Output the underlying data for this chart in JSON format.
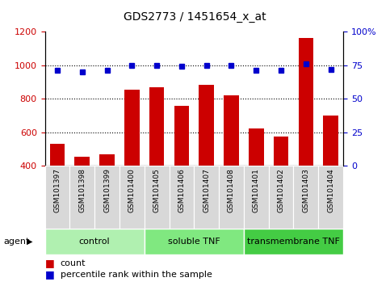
{
  "title": "GDS2773 / 1451654_x_at",
  "samples": [
    "GSM101397",
    "GSM101398",
    "GSM101399",
    "GSM101400",
    "GSM101405",
    "GSM101406",
    "GSM101407",
    "GSM101408",
    "GSM101401",
    "GSM101402",
    "GSM101403",
    "GSM101404"
  ],
  "counts": [
    530,
    455,
    470,
    855,
    870,
    755,
    880,
    820,
    625,
    575,
    1160,
    700
  ],
  "percentiles": [
    71,
    70,
    71,
    75,
    75,
    74,
    75,
    75,
    71,
    71,
    76,
    72
  ],
  "groups": [
    {
      "name": "control",
      "start": 0,
      "end": 4,
      "color": "#b0f0b0"
    },
    {
      "name": "soluble TNF",
      "start": 4,
      "end": 8,
      "color": "#80e880"
    },
    {
      "name": "transmembrane TNF",
      "start": 8,
      "end": 12,
      "color": "#44cc44"
    }
  ],
  "bar_color": "#cc0000",
  "dot_color": "#0000cc",
  "left_ylim": [
    400,
    1200
  ],
  "left_yticks": [
    400,
    600,
    800,
    1000,
    1200
  ],
  "right_ylim": [
    0,
    100
  ],
  "right_yticks": [
    0,
    25,
    50,
    75,
    100
  ],
  "right_yticklabels": [
    "0",
    "25",
    "50",
    "75",
    "100%"
  ],
  "grid_values": [
    600,
    800,
    1000
  ],
  "plot_bg": "#ffffff",
  "cell_bg": "#d8d8d8",
  "legend_count_color": "#cc0000",
  "legend_pct_color": "#0000cc"
}
